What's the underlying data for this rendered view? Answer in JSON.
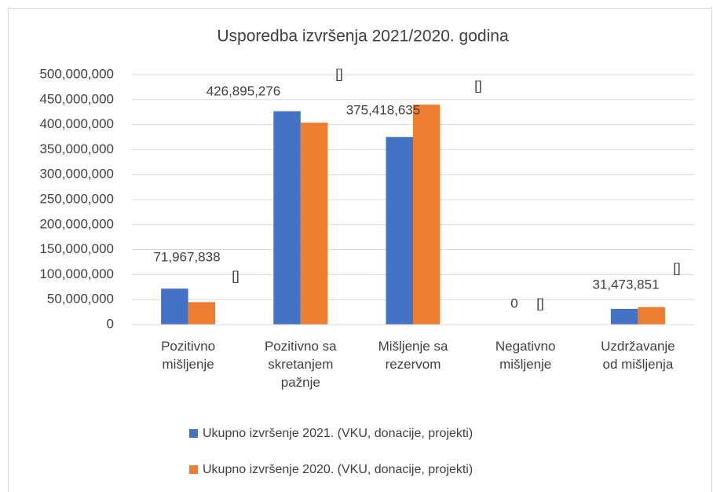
{
  "chart_data": {
    "type": "bar",
    "title": "Usporedba izvršenja 2021/2020. godina",
    "categories": [
      "Pozitivno mišljenje",
      "Pozitivno sa skretanjem pažnje",
      "Mišljenje sa rezervom",
      "Negativno mišljenje",
      "Uzdržavanje od mišljenja"
    ],
    "series": [
      {
        "name": "Ukupno izvršenje 2021. (VKU, donacije, projekti)",
        "color": "#4472c4",
        "values": [
          71967838,
          426895276,
          375418635,
          0,
          31473851
        ],
        "value_labels": [
          "71,967,838",
          "426,895,276",
          "375,418,635",
          "0",
          "31,473,851"
        ]
      },
      {
        "name": "Ukupno izvršenje 2020. (VKU, donacije, projekti)",
        "color": "#ed7d31",
        "values": [
          45000000,
          404000000,
          440000000,
          0,
          35000000
        ],
        "value_labels": [
          "[]",
          "[]",
          "[]",
          "[]",
          "[]"
        ]
      }
    ],
    "ylim": [
      0,
      500000000
    ],
    "yticks": [
      0,
      {
        "value": 50000000,
        "label": "50,000,000"
      },
      {
        "value": 100000000,
        "label": "100,000,000"
      },
      {
        "value": 150000000,
        "label": "150,000,000"
      },
      {
        "value": 200000000,
        "label": "200,000,000"
      },
      {
        "value": 250000000,
        "label": "250,000,000"
      },
      {
        "value": 300000000,
        "label": "300,000,000"
      },
      {
        "value": 350000000,
        "label": "350,000,000"
      },
      {
        "value": 400000000,
        "label": "400,000,000"
      },
      {
        "value": 450000000,
        "label": "450,000,000"
      },
      {
        "value": 500000000,
        "label": "500,000,000"
      }
    ],
    "grid": true,
    "legend": "bottom"
  }
}
